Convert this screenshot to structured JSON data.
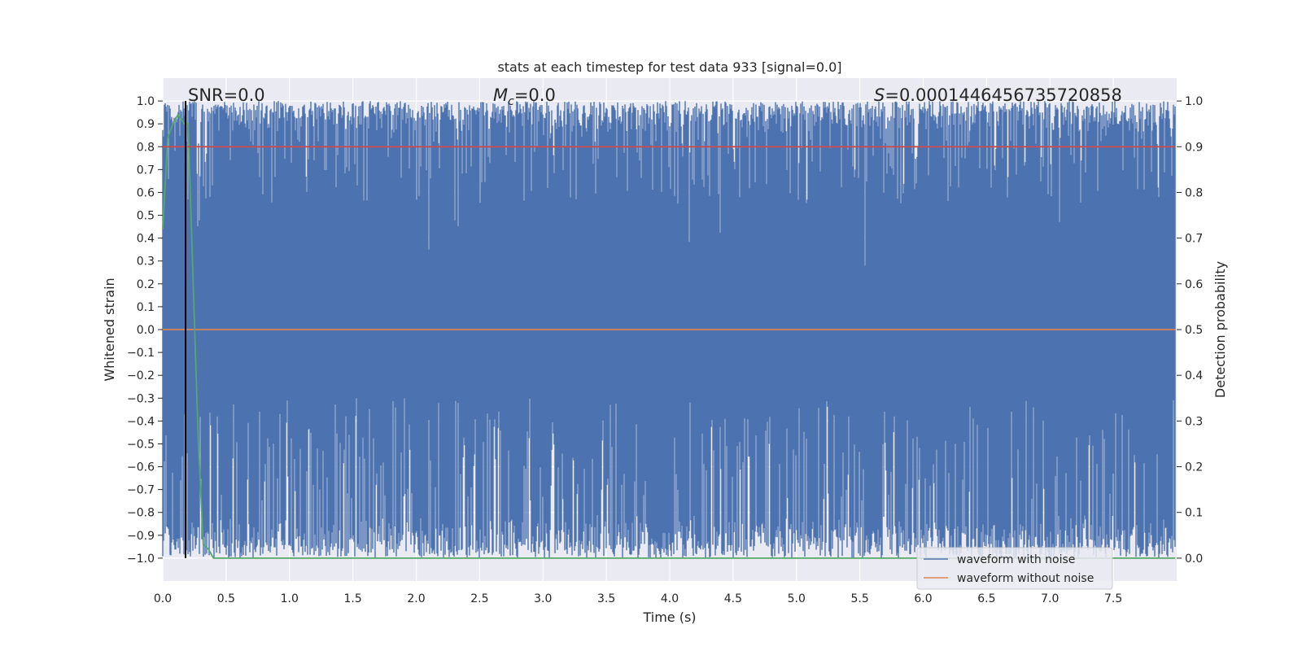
{
  "chart_data": {
    "type": "line",
    "title": "stats at each timestep for test data 933 [signal=0.0]",
    "xlabel": "Time (s)",
    "ylabel_left": "Whitened strain",
    "ylabel_right": "Detection probability",
    "xlim": [
      0.0,
      8.0
    ],
    "ylim_left": [
      -1.1,
      1.1
    ],
    "ylim_right": [
      -0.05,
      1.05
    ],
    "x_ticks": [
      "0.0",
      "0.5",
      "1.0",
      "1.5",
      "2.0",
      "2.5",
      "3.0",
      "3.5",
      "4.0",
      "4.5",
      "5.0",
      "5.5",
      "6.0",
      "6.5",
      "7.0",
      "7.5"
    ],
    "y_ticks_left": [
      "1.0",
      "0.9",
      "0.8",
      "0.7",
      "0.6",
      "0.5",
      "0.4",
      "0.3",
      "0.2",
      "0.1",
      "0.0",
      "−0.1",
      "−0.2",
      "−0.3",
      "−0.4",
      "−0.5",
      "−0.6",
      "−0.7",
      "−0.8",
      "−0.9",
      "−1.0"
    ],
    "y_ticks_right": [
      "1.0",
      "0.9",
      "0.8",
      "0.7",
      "0.6",
      "0.5",
      "0.4",
      "0.3",
      "0.2",
      "0.1",
      "0.0"
    ],
    "grid": true,
    "legend_position": "lower-right",
    "annotations": {
      "snr": "SNR=0.0",
      "mc_symbol": "M",
      "mc_subscript": "c",
      "mc_value": "=0.0",
      "s_symbol": "S",
      "s_value": "=0.0001446456735720858"
    },
    "series": [
      {
        "name": "waveform with noise",
        "axis": "left",
        "color": "#4c72b0",
        "style": "dense-noise",
        "range": [
          -1.0,
          1.0
        ]
      },
      {
        "name": "waveform without noise",
        "axis": "left",
        "color": "#dd8452",
        "x": [
          0.0,
          7.99
        ],
        "y": [
          0.0,
          0.0
        ]
      },
      {
        "name": "",
        "axis": "right",
        "color": "#55a868",
        "x": [
          0.0,
          0.04,
          0.08,
          0.12,
          0.17,
          0.2,
          0.24,
          0.28,
          0.32,
          0.36,
          0.4,
          7.99
        ],
        "y": [
          0.72,
          0.92,
          0.95,
          0.97,
          0.95,
          0.95,
          0.6,
          0.26,
          0.03,
          0.02,
          0.0,
          0.0
        ]
      },
      {
        "name": "",
        "axis": "right",
        "color": "#c44e52",
        "x": [
          0.0,
          7.99
        ],
        "y": [
          0.9,
          0.9
        ]
      }
    ],
    "vline": {
      "x": 0.18,
      "color": "#000000",
      "ymin": -1.0,
      "ymax": 1.0
    }
  }
}
